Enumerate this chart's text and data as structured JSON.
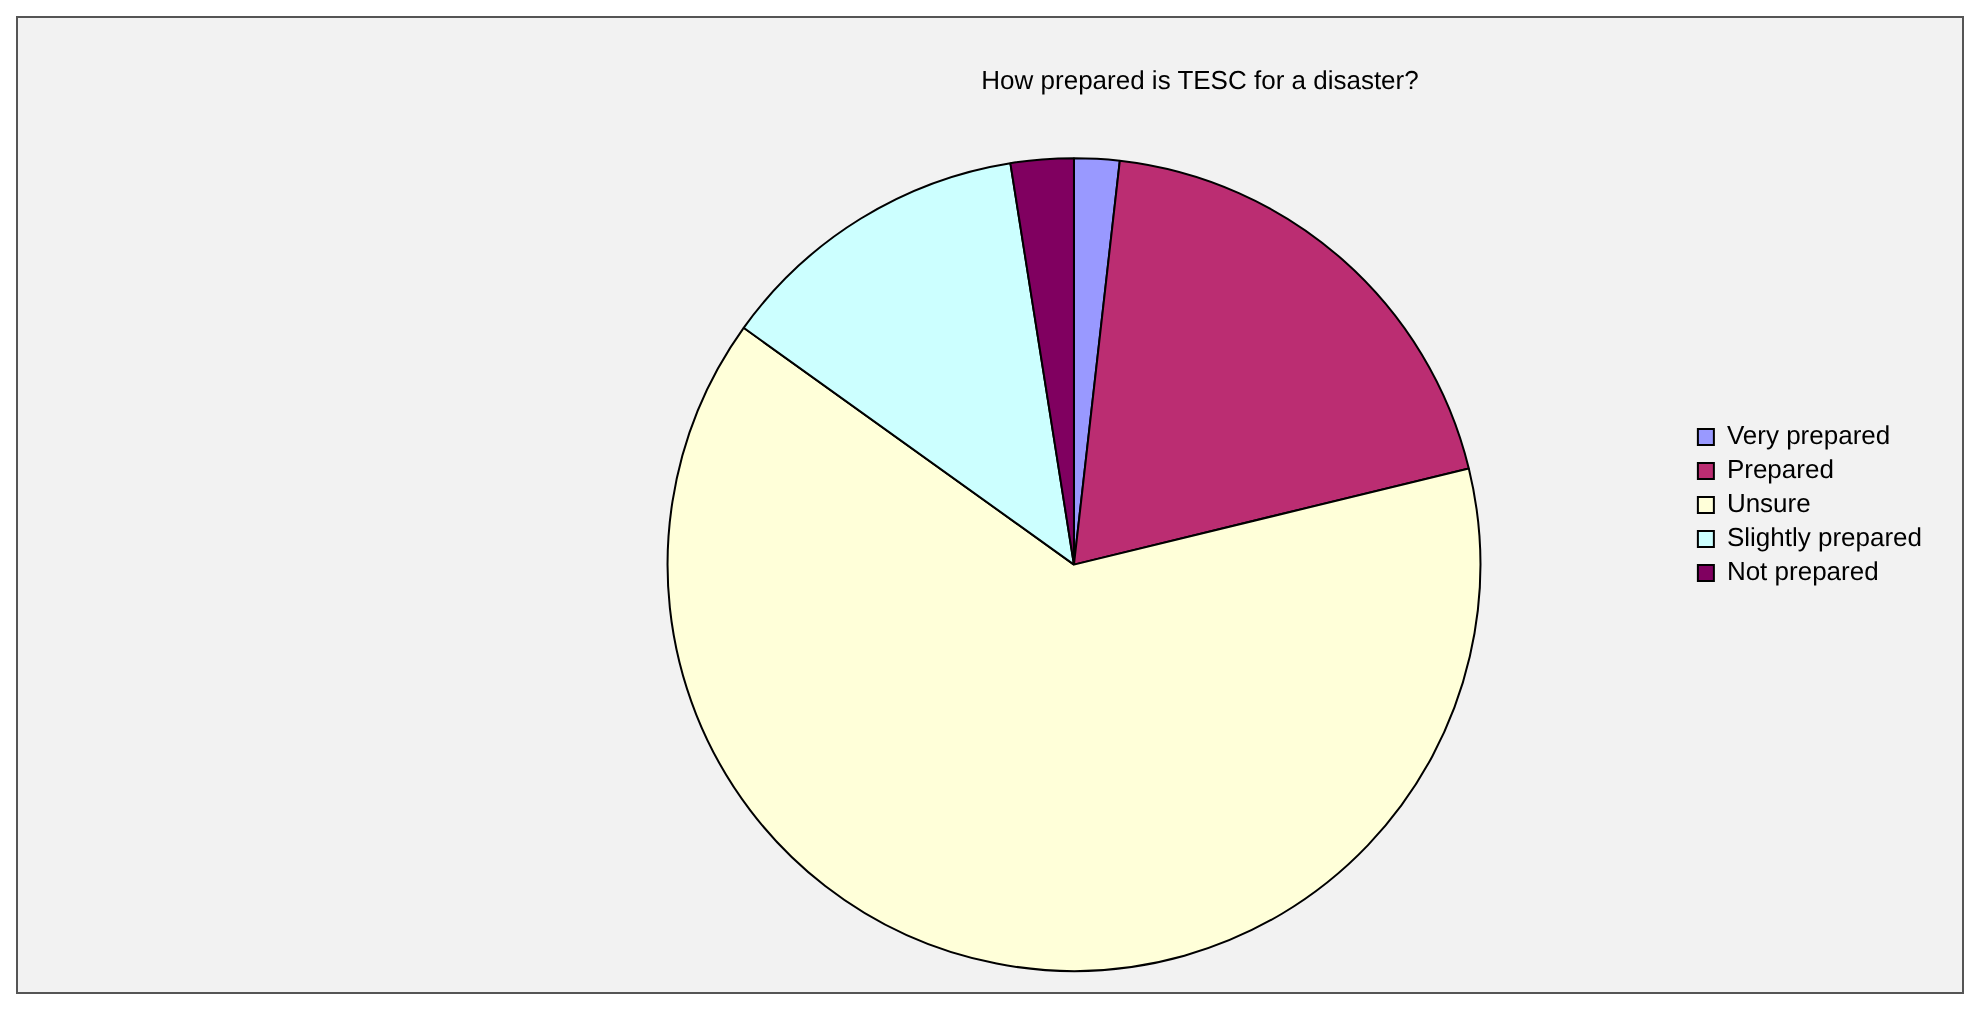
{
  "chart_data": {
    "type": "pie",
    "title": "How prepared is TESC for a disaster?",
    "categories": [
      "Very prepared",
      "Prepared",
      "Unsure",
      "Slightly prepared",
      "Not prepared"
    ],
    "values": [
      1.8,
      19.4,
      63.7,
      12.6,
      2.5
    ],
    "colors": [
      "#9999ff",
      "#bb2d72",
      "#ffffd9",
      "#ccffff",
      "#800060"
    ],
    "legend": "right"
  }
}
